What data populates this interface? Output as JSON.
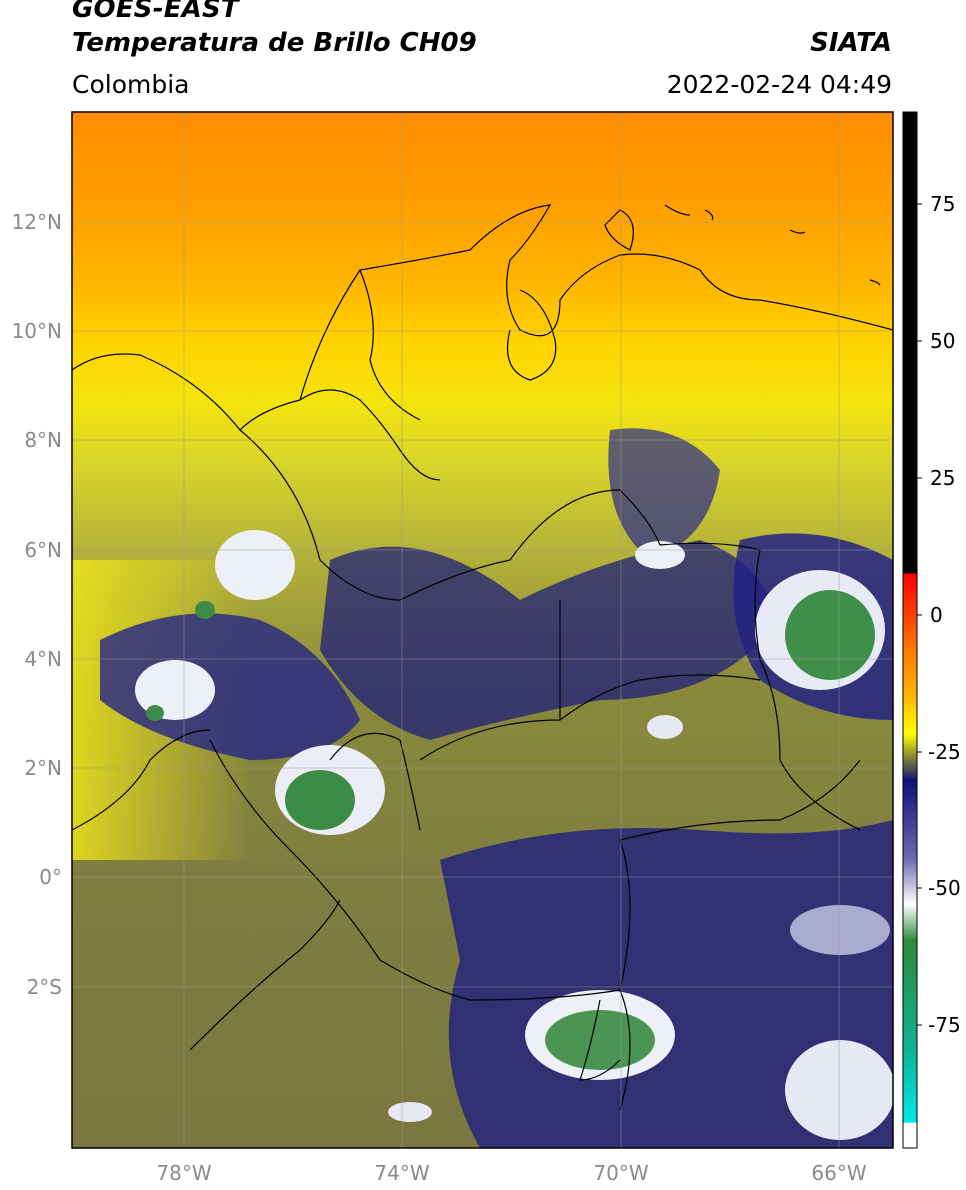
{
  "header": {
    "satellite": "GOES-EAST",
    "product": "Temperatura de Brillo CH09",
    "source": "SIATA",
    "region": "Colombia",
    "datetime": "2022-02-24 04:49"
  },
  "map": {
    "lat_ticks": [
      "12°N",
      "10°N",
      "8°N",
      "6°N",
      "4°N",
      "2°N",
      "0°",
      "2°S"
    ],
    "lon_ticks": [
      "78°W",
      "74°W",
      "70°W",
      "66°W"
    ],
    "background_colors": {
      "north": "#ff9a00",
      "mid": "#f5e20a",
      "south": "#7e7e34",
      "cold_cloud": "#1a1a80",
      "very_cold": "#2e8b3a"
    }
  },
  "colorbar": {
    "tick_labels": [
      "75",
      "50",
      "25",
      "0",
      "-25",
      "-50",
      "-75"
    ],
    "colors": [
      "#000000",
      "#ff0000",
      "#ff9a00",
      "#ffff00",
      "#8a8a3a",
      "#1a1a80",
      "#ffffff",
      "#2e8b3a",
      "#00d8d8",
      "#ffffff"
    ]
  }
}
